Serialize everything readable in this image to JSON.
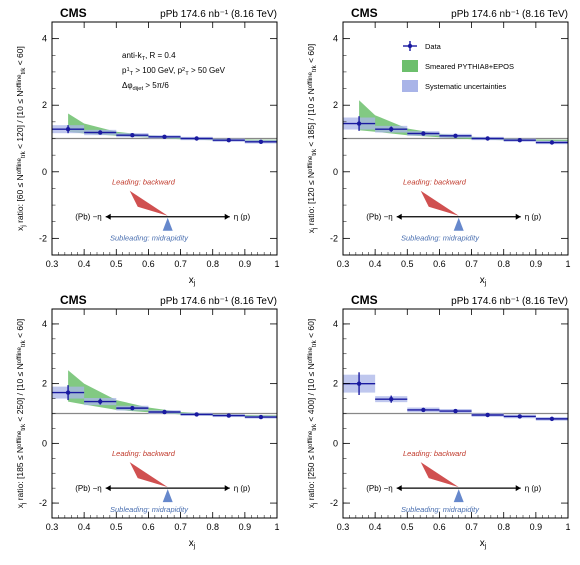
{
  "figure": {
    "experiment": "CMS",
    "lumi_text": "pPb 174.6 nb⁻¹ (8.16 TeV)",
    "xlabel": "x_j",
    "colors": {
      "data": "#1a1aa0",
      "model_band": "#6cbf6c",
      "syst_box": "#a9b4e8",
      "leading": "#d05050",
      "subleading": "#6688cc",
      "ref_line": "#888888"
    }
  },
  "legend": {
    "data_label": "Data",
    "model_label": "Smeared PYTHIA8+EPOS",
    "syst_label": "Systematic uncertainties"
  },
  "cuts": {
    "algo": "anti-k",
    "algo_sub": "T",
    "algo_r": ", R = 0.4",
    "pt_lead": "p",
    "pt_lead_sup": "1",
    "pt_lead_sub": "T",
    "pt_lead_rest": " > 100 GeV,",
    "pt_sub": "p",
    "pt_sub_sup": "2",
    "pt_sub_sub": "T",
    "pt_sub_rest": " > 50 GeV",
    "dphi": "Δφ",
    "dphi_sub": "dijet",
    "dphi_rest": " > 5π/6"
  },
  "diagram": {
    "leading": "Leading: backward",
    "subleading": "Subleading: midrapidity",
    "left": "(Pb) −η",
    "right": "η (p)"
  },
  "chart_data": [
    {
      "type": "scatter",
      "ylabel": "x_j ratio: [60 ≤ N_trk^offline < 120] / [10 ≤ N_trk^offline < 60]",
      "xlim": [
        0.3,
        1.0
      ],
      "ylim": [
        -2.5,
        4.5
      ],
      "xticks": [
        0.3,
        0.4,
        0.5,
        0.6,
        0.7,
        0.8,
        0.9,
        1
      ],
      "yticks": [
        -2,
        0,
        2,
        4
      ],
      "series": [
        {
          "name": "Data",
          "x": [
            0.35,
            0.45,
            0.55,
            0.65,
            0.75,
            0.85,
            0.95
          ],
          "y": [
            1.28,
            1.18,
            1.1,
            1.05,
            1.0,
            0.95,
            0.9
          ],
          "yerr": [
            0.12,
            0.06,
            0.04,
            0.03,
            0.03,
            0.03,
            0.03
          ],
          "syst": [
            0.12,
            0.08,
            0.06,
            0.05,
            0.05,
            0.05,
            0.05
          ]
        },
        {
          "name": "Smeared PYTHIA8+EPOS",
          "x": [
            0.35,
            0.4,
            0.5,
            0.6,
            0.7,
            0.8,
            0.9,
            1.0
          ],
          "lo": [
            1.2,
            1.15,
            1.08,
            1.03,
            0.98,
            0.95,
            0.93,
            0.92
          ],
          "hi": [
            1.75,
            1.45,
            1.2,
            1.1,
            1.03,
            0.99,
            0.97,
            0.96
          ]
        }
      ]
    },
    {
      "type": "scatter",
      "ylabel": "x_j ratio: [120 ≤ N_trk^offline < 185] / [10 ≤ N_trk^offline < 60]",
      "xlim": [
        0.3,
        1.0
      ],
      "ylim": [
        -2.5,
        4.5
      ],
      "xticks": [
        0.3,
        0.4,
        0.5,
        0.6,
        0.7,
        0.8,
        0.9,
        1
      ],
      "yticks": [
        -2,
        0,
        2,
        4
      ],
      "series": [
        {
          "name": "Data",
          "x": [
            0.35,
            0.45,
            0.55,
            0.65,
            0.75,
            0.85,
            0.95
          ],
          "y": [
            1.45,
            1.28,
            1.15,
            1.08,
            1.0,
            0.95,
            0.88
          ],
          "yerr": [
            0.22,
            0.08,
            0.05,
            0.04,
            0.03,
            0.03,
            0.03
          ],
          "syst": [
            0.18,
            0.1,
            0.07,
            0.06,
            0.05,
            0.05,
            0.05
          ]
        },
        {
          "name": "Smeared PYTHIA8+EPOS",
          "x": [
            0.35,
            0.4,
            0.5,
            0.6,
            0.7,
            0.8,
            0.9,
            1.0
          ],
          "lo": [
            1.25,
            1.2,
            1.1,
            1.04,
            0.98,
            0.95,
            0.93,
            0.92
          ],
          "hi": [
            2.15,
            1.7,
            1.3,
            1.14,
            1.05,
            1.0,
            0.97,
            0.96
          ]
        }
      ]
    },
    {
      "type": "scatter",
      "ylabel": "x_j ratio: [185 ≤ N_trk^offline < 250] / [10 ≤ N_trk^offline < 60]",
      "xlim": [
        0.3,
        1.0
      ],
      "ylim": [
        -2.5,
        4.5
      ],
      "xticks": [
        0.3,
        0.4,
        0.5,
        0.6,
        0.7,
        0.8,
        0.9,
        1
      ],
      "yticks": [
        -2,
        0,
        2,
        4
      ],
      "series": [
        {
          "name": "Data",
          "x": [
            0.35,
            0.45,
            0.55,
            0.65,
            0.75,
            0.85,
            0.95
          ],
          "y": [
            1.7,
            1.4,
            1.18,
            1.05,
            0.97,
            0.93,
            0.88
          ],
          "yerr": [
            0.25,
            0.1,
            0.05,
            0.04,
            0.03,
            0.03,
            0.03
          ],
          "syst": [
            0.2,
            0.12,
            0.08,
            0.06,
            0.05,
            0.05,
            0.05
          ]
        },
        {
          "name": "Smeared PYTHIA8+EPOS",
          "x": [
            0.35,
            0.4,
            0.5,
            0.6,
            0.7,
            0.8,
            0.9,
            1.0
          ],
          "lo": [
            1.4,
            1.3,
            1.12,
            1.04,
            0.97,
            0.93,
            0.9,
            0.89
          ],
          "hi": [
            2.45,
            2.0,
            1.45,
            1.2,
            1.05,
            0.98,
            0.95,
            0.94
          ]
        }
      ]
    },
    {
      "type": "scatter",
      "ylabel": "x_j ratio: [250 ≤ N_trk^offline < 400] / [10 ≤ N_trk^offline < 60]",
      "xlim": [
        0.3,
        1.0
      ],
      "ylim": [
        -2.5,
        4.5
      ],
      "xticks": [
        0.3,
        0.4,
        0.5,
        0.6,
        0.7,
        0.8,
        0.9,
        1
      ],
      "yticks": [
        -2,
        0,
        2,
        4
      ],
      "series": [
        {
          "name": "Data",
          "x": [
            0.35,
            0.45,
            0.55,
            0.65,
            0.75,
            0.85,
            0.95
          ],
          "y": [
            2.0,
            1.48,
            1.12,
            1.08,
            0.95,
            0.9,
            0.82
          ],
          "yerr": [
            0.38,
            0.12,
            0.07,
            0.05,
            0.04,
            0.04,
            0.04
          ],
          "syst": [
            0.3,
            0.1,
            0.08,
            0.07,
            0.06,
            0.06,
            0.06
          ]
        }
      ]
    }
  ]
}
